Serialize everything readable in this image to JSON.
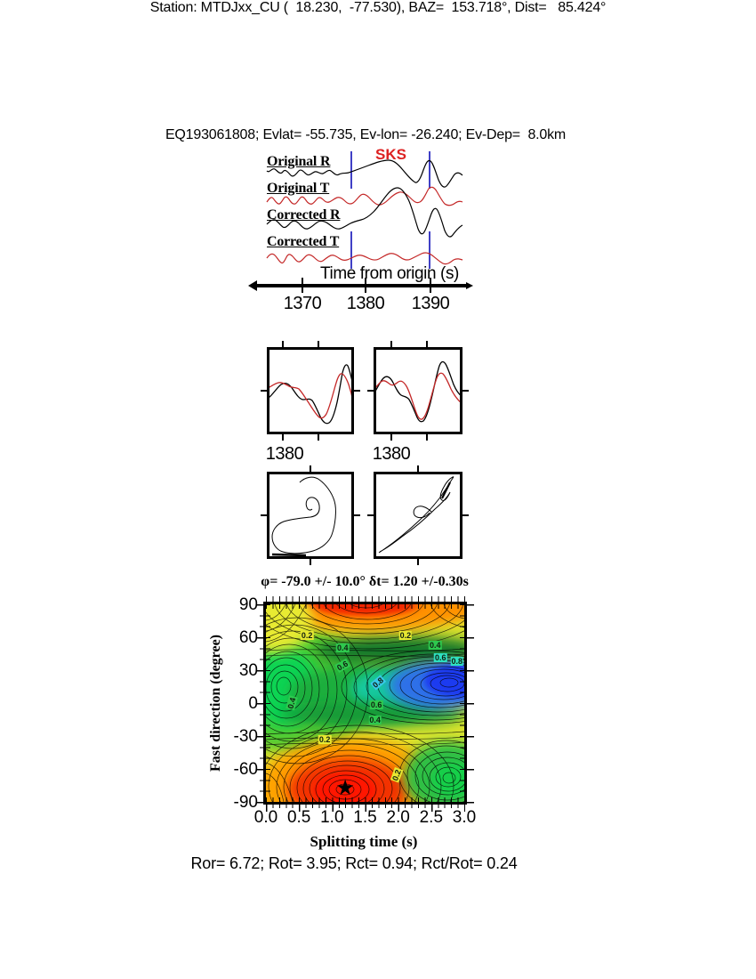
{
  "header": {
    "line1": "Station: MTDJxx_CU (  18.230,  -77.530), BAZ=  153.718°, Dist=   85.424°",
    "line2": "EQ193061808; Evlat= -55.735, Ev-lon= -26.240; Ev-Dep=  8.0km"
  },
  "seismogram": {
    "phase_label": "SKS",
    "trace_labels": [
      "Original R",
      "Original T",
      "Corrected R",
      "Corrected T"
    ],
    "axis_title": "Time from origin (s)",
    "axis_ticks": [
      "1370",
      "1380",
      "1390"
    ]
  },
  "windows": {
    "left_tick": "1380",
    "right_tick": "1380"
  },
  "contour": {
    "title": "φ= -79.0 +/- 10.0° δt= 1.20 +/-0.30s",
    "ylabel": "Fast direction (degree)",
    "xlabel": "Splitting time (s)"
  },
  "footer": {
    "stats": "Ror= 6.72; Rot= 3.95; Rct= 0.94; Rct/Rot= 0.24"
  },
  "colors": {
    "trace_red": "#c42828",
    "window_blue": "#2a2ac0",
    "phase_red": "#dd2222"
  },
  "chart_data": {
    "seismograms": {
      "type": "line",
      "title": "Original and corrected radial/transverse seismograms",
      "xlabel": "Time from origin (s)",
      "x_ticks": [
        1370,
        1380,
        1390
      ],
      "xlim": [
        1363,
        1396
      ],
      "traces": [
        "Original R",
        "Original T",
        "Corrected R",
        "Corrected T"
      ],
      "phase_marker": "SKS",
      "analysis_window_s": [
        1377.8,
        1389.8
      ]
    },
    "window_comparison": {
      "type": "line",
      "panels": [
        {
          "name": "original fast/slow pair",
          "x_tick_label": "1380"
        },
        {
          "name": "corrected fast/slow pair",
          "x_tick_label": "1380"
        }
      ]
    },
    "particle_motion": {
      "type": "line",
      "panels": [
        "original particle motion (elliptical)",
        "corrected particle motion (linearized)"
      ]
    },
    "error_surface": {
      "type": "contour",
      "xlabel": "Splitting time (s)",
      "ylabel": "Fast direction (degree)",
      "xlim": [
        0.0,
        3.0
      ],
      "ylim": [
        -90,
        90
      ],
      "x_ticks": [
        "0.0",
        "0.5",
        "1.0",
        "1.5",
        "2.0",
        "2.5",
        "3.0"
      ],
      "y_ticks": [
        "90",
        "60",
        "30",
        "0",
        "-30",
        "-60",
        "-90"
      ],
      "contour_levels": [
        0.2,
        0.4,
        0.6,
        0.8
      ],
      "best_solution": {
        "phi_deg": -79.0,
        "phi_err_deg": 10.0,
        "dt_s": 1.2,
        "dt_err_s": 0.3
      },
      "star": {
        "dt": 1.2,
        "phi": -79
      },
      "contour_labels": [
        {
          "text": "0.2",
          "t": 0.62,
          "phi": 62,
          "rot": 0,
          "bg": "#e8e832"
        },
        {
          "text": "0.2",
          "t": 2.11,
          "phi": 62,
          "rot": 0,
          "bg": "#e8e832"
        },
        {
          "text": "0.4",
          "t": 1.16,
          "phi": 50,
          "rot": 0,
          "bg": "#2ec84e"
        },
        {
          "text": "0.4",
          "t": 2.56,
          "phi": 53,
          "rot": 0,
          "bg": "#2ec84e"
        },
        {
          "text": "0.6",
          "t": 2.64,
          "phi": 41,
          "rot": 0,
          "bg": "#2ee0c0"
        },
        {
          "text": "0.6",
          "t": 1.16,
          "phi": 34,
          "rot": -30,
          "bg": "#2ec84e"
        },
        {
          "text": "0.8",
          "t": 2.89,
          "phi": 38,
          "rot": 0,
          "bg": "#2ee0c0"
        },
        {
          "text": "0.8",
          "t": 1.7,
          "phi": 19,
          "rot": -40,
          "bg": "#38c8e8"
        },
        {
          "text": "0.4",
          "t": 0.39,
          "phi": 0,
          "rot": -75,
          "bg": "#2ec84e"
        },
        {
          "text": "0.6",
          "t": 1.67,
          "phi": -2,
          "rot": 0,
          "bg": "#2ec84e"
        },
        {
          "text": "0.4",
          "t": 1.65,
          "phi": -15,
          "rot": 0,
          "bg": "#2ec84e"
        },
        {
          "text": "0.2",
          "t": 0.89,
          "phi": -33,
          "rot": 0,
          "bg": "#e8e832"
        },
        {
          "text": "0.2",
          "t": 1.98,
          "phi": -66,
          "rot": -70,
          "bg": "#e8e832"
        }
      ],
      "statistics": "Ror= 6.72; Rot= 3.95; Rct= 0.94; Rct/Rot= 0.24"
    }
  }
}
